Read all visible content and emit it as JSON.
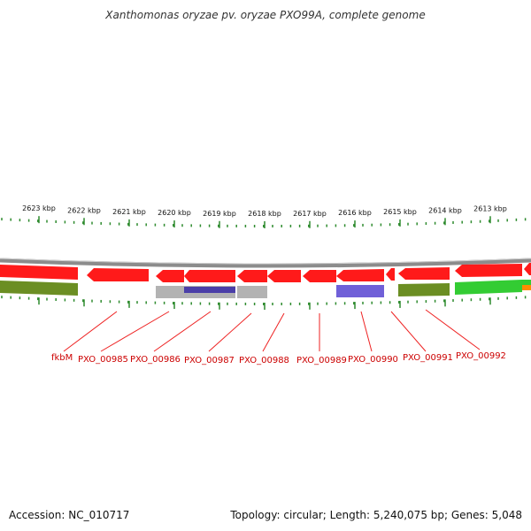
{
  "title": "Xanthomonas oryzae pv. oryzae PXO99A, complete genome",
  "scale_labels": [
    "2623 kbp",
    "2622 kbp",
    "2621 kbp",
    "2620 kbp",
    "2619 kbp",
    "2618 kbp",
    "2617 kbp",
    "2616 kbp",
    "2615 kbp",
    "2614 kbp",
    "2613 kbp"
  ],
  "gene_labels": [
    "fkbM",
    "PXO_00985",
    "PXO_00986",
    "PXO_00987",
    "PXO_00988",
    "PXO_00989",
    "PXO_00990",
    "PXO_00991",
    "PXO_00992"
  ],
  "accession": "Accession: NC_010717",
  "summary": "Topology: circular; Length: 5,240,075 bp; Genes: 5,048",
  "colors": {
    "backbone": "#8c8c8c",
    "gene": "#ff0000",
    "gene_label": "#cc0000",
    "tick": "#2e8b2e",
    "olive": "#6b8e23",
    "green": "#33cc33",
    "grey": "#b3b3b3",
    "blue": "#6a5acd",
    "orange": "#ff8c00"
  }
}
